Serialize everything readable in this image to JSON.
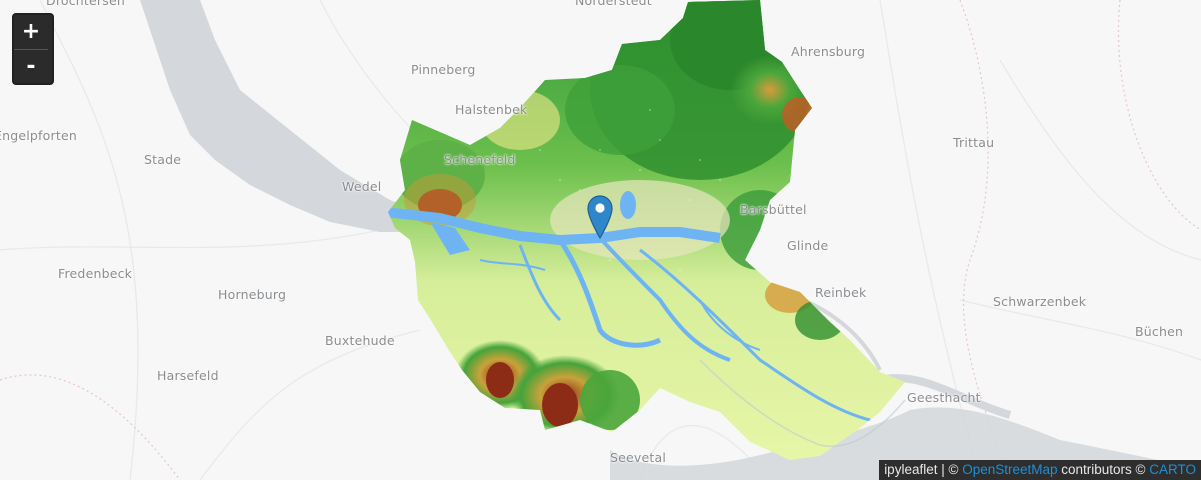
{
  "map": {
    "places": [
      {
        "name": "Drochtersen",
        "id": "drochtersen"
      },
      {
        "name": "Norderstedt",
        "id": "norderstedt"
      },
      {
        "name": "Ahrensburg",
        "id": "ahrensburg"
      },
      {
        "name": "Pinneberg",
        "id": "pinneberg"
      },
      {
        "name": "Halstenbek",
        "id": "halstenbek"
      },
      {
        "name": "Engelpforten",
        "id": "engelpforten"
      },
      {
        "name": "Stade",
        "id": "stade"
      },
      {
        "name": "Schenefeld",
        "id": "schenefeld"
      },
      {
        "name": "Wedel",
        "id": "wedel"
      },
      {
        "name": "Trittau",
        "id": "trittau"
      },
      {
        "name": "Barsbüttel",
        "id": "barsbuettel"
      },
      {
        "name": "Glinde",
        "id": "glinde"
      },
      {
        "name": "Fredenbeck",
        "id": "fredenbeck"
      },
      {
        "name": "Horneburg",
        "id": "horneburg"
      },
      {
        "name": "Reinbek",
        "id": "reinbek"
      },
      {
        "name": "Schwarzenbek",
        "id": "schwarzenbek"
      },
      {
        "name": "Buxtehude",
        "id": "buxtehude"
      },
      {
        "name": "Büchen",
        "id": "buechen"
      },
      {
        "name": "Harsefeld",
        "id": "harsefeld"
      },
      {
        "name": "Geesthacht",
        "id": "geesthacht"
      },
      {
        "name": "Seevetal",
        "id": "seevetal"
      }
    ],
    "marker_icon": "map-pin-icon",
    "colors": {
      "background": "#f7f7f7",
      "water": "#d4d8dc",
      "overlay_river": "#6fb4f2",
      "dem_low": "#e6f5a0",
      "dem_mid": "#3fa13b",
      "dem_high": "#a3331c",
      "marker": "#2f86c9"
    }
  },
  "controls": {
    "zoom_in": "+",
    "zoom_out": "-"
  },
  "attribution": {
    "prefix": "ipyleaflet | © ",
    "osm_link": "OpenStreetMap",
    "middle": " contributors © ",
    "carto_link": "CARTO"
  }
}
